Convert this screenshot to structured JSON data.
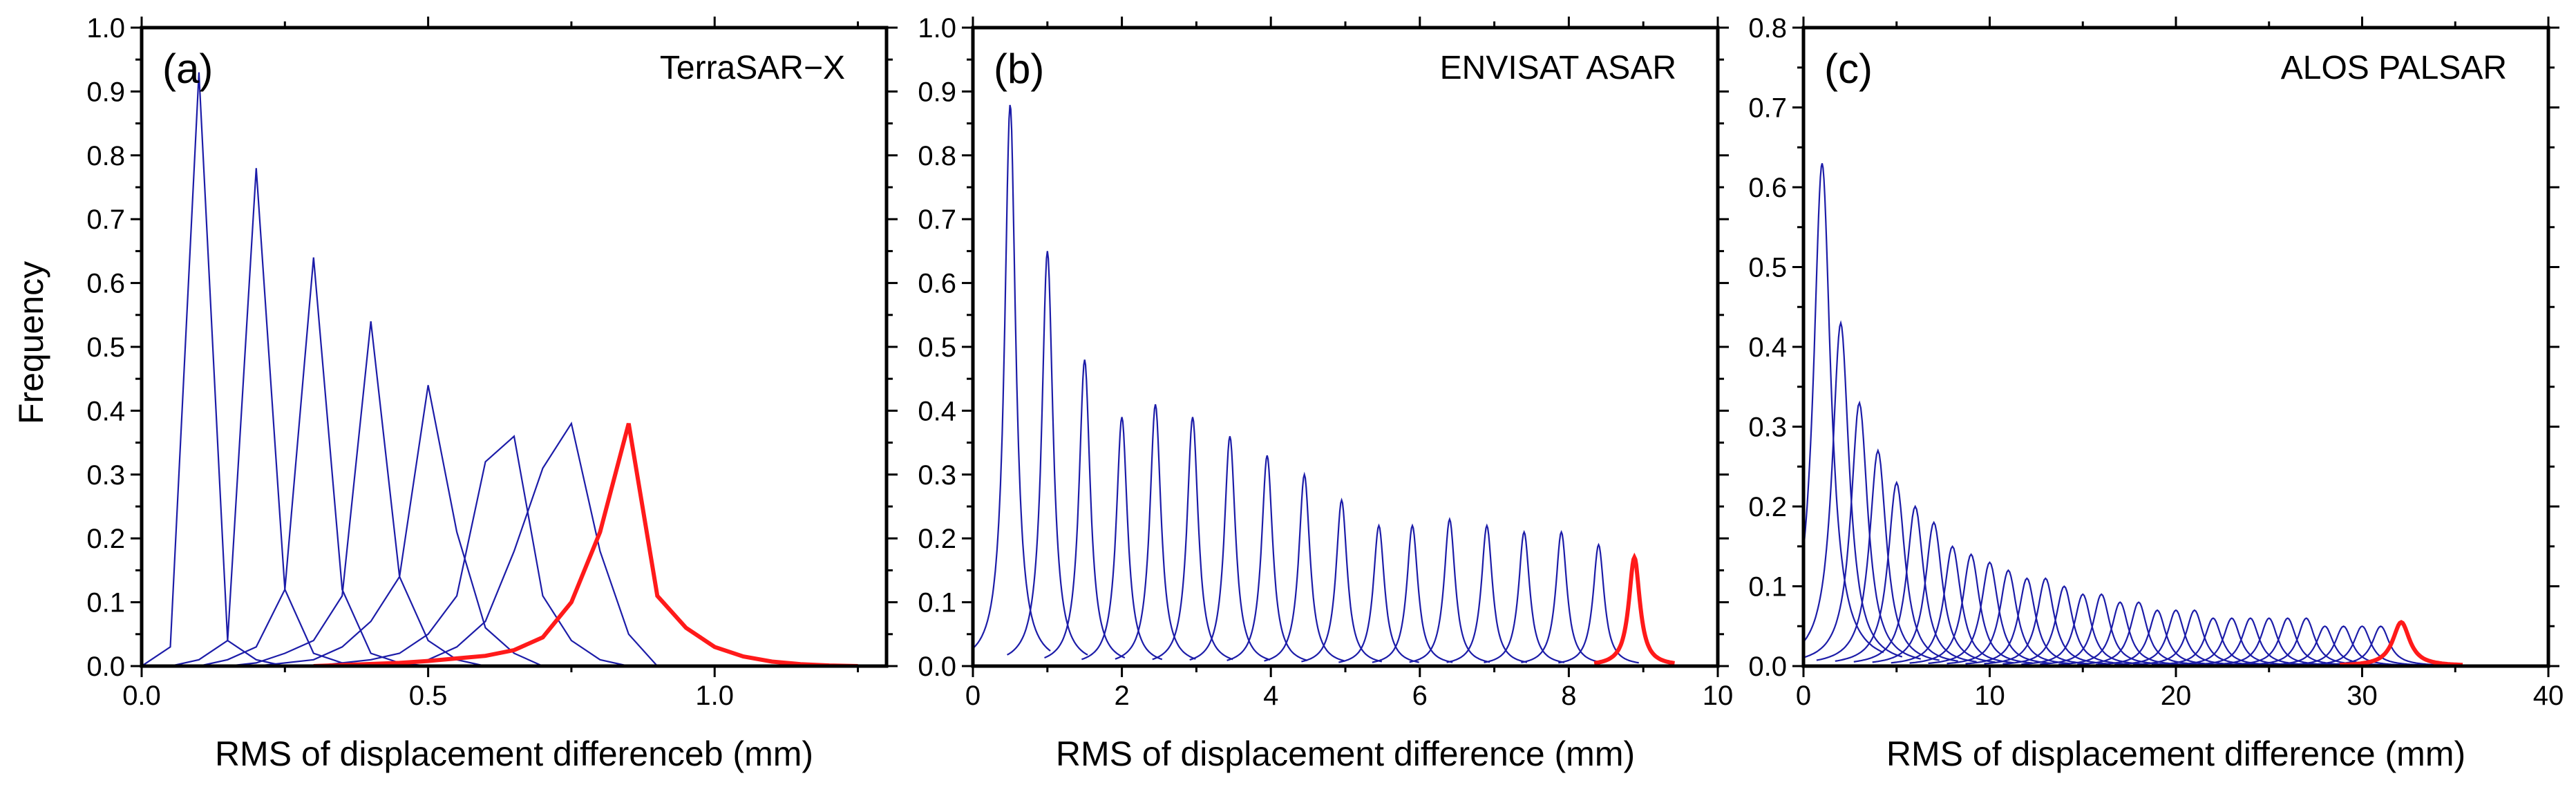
{
  "figure": {
    "ylabel": "Frequency",
    "blue_color": "#1c1ca8",
    "red_color": "#ff1a1a"
  },
  "chart_data": [
    {
      "type": "line",
      "panel": "(a)",
      "sensor": "TerraSAR−X",
      "xlabel": "RMS of displacement differenceb (mm)",
      "ylabel": "Frequency",
      "xlim": [
        0,
        1.3
      ],
      "ylim": [
        0,
        1.0
      ],
      "xticks": [
        0.0,
        0.5,
        1.0
      ],
      "xtick_labels": [
        "0.0",
        "0.5",
        "1.0"
      ],
      "yticks": [
        0,
        0.1,
        0.2,
        0.3,
        0.4,
        0.5,
        0.6,
        0.7,
        0.8,
        0.9,
        1.0
      ],
      "ytick_labels": [
        "0.0",
        "0.1",
        "0.2",
        "0.3",
        "0.4",
        "0.5",
        "0.6",
        "0.7",
        "0.8",
        "0.9",
        "1.0"
      ],
      "series": [
        {
          "name": "0.1",
          "color": "blue",
          "x": [
            0,
            0.05,
            0.1,
            0.15,
            0.2,
            0.25,
            0.3
          ],
          "y": [
            0,
            0.03,
            0.93,
            0.04,
            0.01,
            0,
            0
          ]
        },
        {
          "name": "0.2",
          "color": "blue",
          "x": [
            0.05,
            0.1,
            0.15,
            0.2,
            0.25,
            0.3,
            0.35,
            0.4
          ],
          "y": [
            0,
            0.01,
            0.04,
            0.78,
            0.12,
            0.02,
            0.005,
            0
          ]
        },
        {
          "name": "0.3",
          "color": "blue",
          "x": [
            0.1,
            0.15,
            0.2,
            0.25,
            0.3,
            0.35,
            0.4,
            0.45,
            0.5
          ],
          "y": [
            0,
            0.01,
            0.03,
            0.12,
            0.64,
            0.12,
            0.02,
            0.005,
            0
          ]
        },
        {
          "name": "0.4",
          "color": "blue",
          "x": [
            0.15,
            0.2,
            0.25,
            0.3,
            0.35,
            0.4,
            0.45,
            0.5,
            0.55,
            0.6
          ],
          "y": [
            0,
            0.005,
            0.02,
            0.04,
            0.11,
            0.54,
            0.14,
            0.04,
            0.01,
            0
          ]
        },
        {
          "name": "0.5",
          "color": "blue",
          "x": [
            0.2,
            0.3,
            0.35,
            0.4,
            0.45,
            0.5,
            0.55,
            0.6,
            0.65,
            0.7
          ],
          "y": [
            0,
            0.01,
            0.03,
            0.07,
            0.14,
            0.44,
            0.21,
            0.06,
            0.02,
            0
          ]
        },
        {
          "name": "0.6",
          "color": "blue",
          "x": [
            0.3,
            0.4,
            0.45,
            0.5,
            0.55,
            0.6,
            0.65,
            0.7,
            0.75,
            0.8,
            0.85
          ],
          "y": [
            0,
            0.01,
            0.02,
            0.05,
            0.11,
            0.32,
            0.36,
            0.11,
            0.04,
            0.01,
            0
          ]
        },
        {
          "name": "0.7",
          "color": "blue",
          "x": [
            0.4,
            0.5,
            0.55,
            0.6,
            0.65,
            0.7,
            0.75,
            0.8,
            0.85,
            0.9
          ],
          "y": [
            0,
            0.01,
            0.03,
            0.07,
            0.18,
            0.31,
            0.38,
            0.18,
            0.05,
            0
          ]
        },
        {
          "name": "0.85",
          "color": "red",
          "x": [
            0.3,
            0.45,
            0.5,
            0.55,
            0.6,
            0.65,
            0.7,
            0.75,
            0.8,
            0.85,
            0.9,
            0.95,
            1.0,
            1.05,
            1.1,
            1.15,
            1.2,
            1.25
          ],
          "y": [
            0,
            0.005,
            0.008,
            0.012,
            0.016,
            0.025,
            0.045,
            0.1,
            0.21,
            0.38,
            0.11,
            0.06,
            0.03,
            0.015,
            0.007,
            0.003,
            0.001,
            0
          ]
        }
      ]
    },
    {
      "type": "line",
      "panel": "(b)",
      "sensor": "ENVISAT ASAR",
      "xlabel": "RMS of displacement difference (mm)",
      "ylabel": "Frequency",
      "xlim": [
        0,
        10
      ],
      "ylim": [
        0,
        1.0
      ],
      "xticks": [
        0,
        2,
        4,
        6,
        8,
        10
      ],
      "xtick_labels": [
        "0",
        "2",
        "4",
        "6",
        "8",
        "10"
      ],
      "yticks": [
        0,
        0.1,
        0.2,
        0.3,
        0.4,
        0.5,
        0.6,
        0.7,
        0.8,
        0.9,
        1.0
      ],
      "ytick_labels": [
        "0.0",
        "0.1",
        "0.2",
        "0.3",
        "0.4",
        "0.5",
        "0.6",
        "0.7",
        "0.8",
        "0.9",
        "1.0"
      ],
      "peak_width": 0.09,
      "series": [
        {
          "name": "peaks",
          "color": "blue",
          "centers": [
            0.5,
            1.0,
            1.5,
            2.0,
            2.45,
            2.95,
            3.45,
            3.95,
            4.45,
            4.95,
            5.45,
            5.9,
            6.4,
            6.9,
            7.4,
            7.9,
            8.4
          ],
          "peaks": [
            0.88,
            0.65,
            0.48,
            0.39,
            0.41,
            0.39,
            0.36,
            0.33,
            0.3,
            0.26,
            0.22,
            0.22,
            0.23,
            0.22,
            0.21,
            0.21,
            0.19
          ]
        },
        {
          "name": "red",
          "color": "red",
          "centers": [
            8.88
          ],
          "peaks": [
            0.17
          ]
        }
      ]
    },
    {
      "type": "line",
      "panel": "(c)",
      "sensor": "ALOS PALSAR",
      "xlabel": "RMS of displacement difference (mm)",
      "ylabel": "Frequency",
      "xlim": [
        0,
        40
      ],
      "ylim": [
        0,
        0.8
      ],
      "xticks": [
        0,
        10,
        20,
        30,
        40
      ],
      "xtick_labels": [
        "0",
        "10",
        "20",
        "30",
        "40"
      ],
      "yticks": [
        0,
        0.1,
        0.2,
        0.3,
        0.4,
        0.5,
        0.6,
        0.7,
        0.8
      ],
      "ytick_labels": [
        "0.0",
        "0.1",
        "0.2",
        "0.3",
        "0.4",
        "0.5",
        "0.6",
        "0.7",
        "0.8"
      ],
      "peak_width": 0.55,
      "series": [
        {
          "name": "peaks",
          "color": "blue",
          "centers": [
            1,
            2,
            3,
            4,
            5,
            6,
            7,
            8,
            9,
            10,
            11,
            12,
            13,
            14,
            15,
            16,
            17,
            18,
            19,
            20,
            21,
            22,
            23,
            24,
            25,
            26,
            27,
            28,
            29,
            30,
            31
          ],
          "peaks": [
            0.63,
            0.43,
            0.33,
            0.27,
            0.23,
            0.2,
            0.18,
            0.15,
            0.14,
            0.13,
            0.12,
            0.11,
            0.11,
            0.1,
            0.09,
            0.09,
            0.08,
            0.08,
            0.07,
            0.07,
            0.07,
            0.06,
            0.06,
            0.06,
            0.06,
            0.06,
            0.06,
            0.05,
            0.05,
            0.05,
            0.05
          ]
        },
        {
          "name": "red",
          "color": "red",
          "centers": [
            32.1
          ],
          "peaks": [
            0.055
          ]
        }
      ]
    }
  ]
}
